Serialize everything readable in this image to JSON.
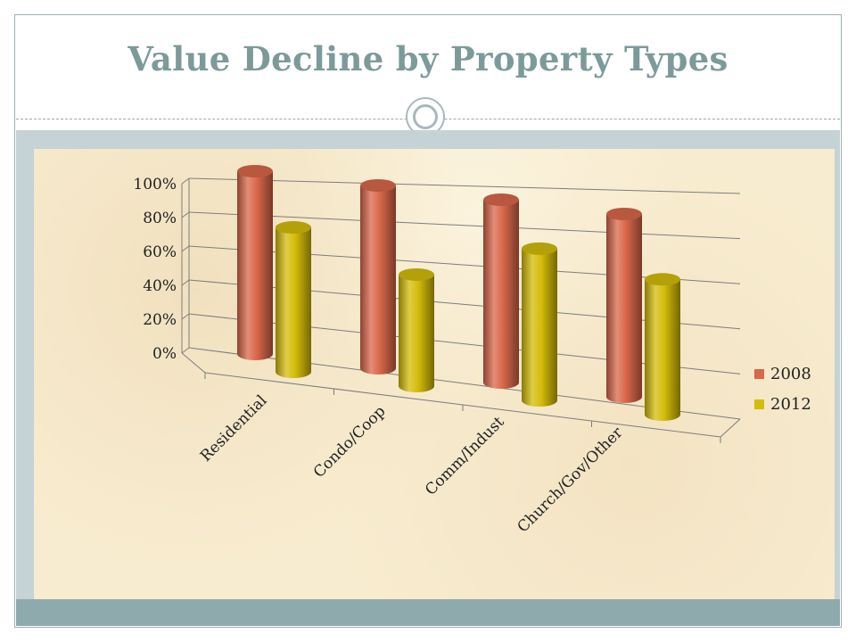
{
  "slide": {
    "title": "Value Decline by Property Types"
  },
  "chart_data": {
    "type": "bar",
    "title": "",
    "xlabel": "",
    "ylabel": "",
    "ylim": [
      0,
      1
    ],
    "yticks": [
      {
        "value": 0,
        "label": "0%"
      },
      {
        "value": 0.2,
        "label": "20%"
      },
      {
        "value": 0.4,
        "label": "40%"
      },
      {
        "value": 0.6,
        "label": "60%"
      },
      {
        "value": 0.8,
        "label": "80%"
      },
      {
        "value": 1,
        "label": "100%"
      }
    ],
    "categories": [
      "Residential",
      "Condo/Coop",
      "Comm/Indust",
      "Church/Gov/Other"
    ],
    "series": [
      {
        "name": "2008",
        "values": [
          1.0,
          1.0,
          1.0,
          1.0
        ],
        "color": "#d9674a"
      },
      {
        "name": "2012",
        "values": [
          0.79,
          0.61,
          0.83,
          0.74
        ],
        "color": "#d4bc0a"
      }
    ],
    "grid": true,
    "legend_position": "right",
    "style": "3d-cylinder"
  }
}
